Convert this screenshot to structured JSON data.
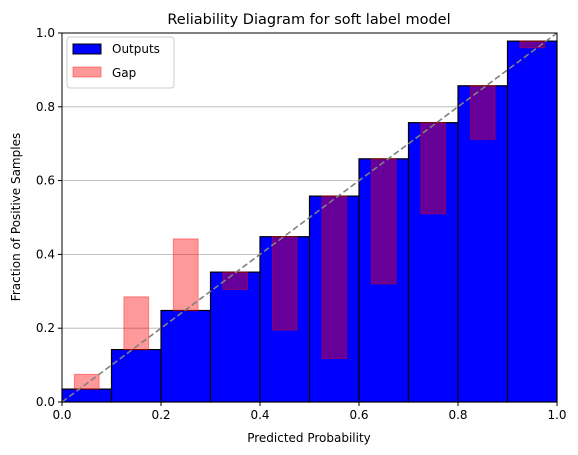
{
  "chart_data": {
    "type": "bar",
    "title": "Reliability Diagram for soft label model",
    "xlabel": "Predicted Probability",
    "ylabel": "Fraction of Positive Samples",
    "xlim": [
      0,
      1
    ],
    "ylim": [
      0,
      1
    ],
    "xticks": [
      "0.0",
      "0.2",
      "0.4",
      "0.6",
      "0.8",
      "1.0"
    ],
    "yticks": [
      "0.0",
      "0.2",
      "0.4",
      "0.6",
      "0.8",
      "1.0"
    ],
    "grid": "horizontal",
    "legend_position": "top-left",
    "bin_edges": [
      0.0,
      0.1,
      0.2,
      0.3,
      0.4,
      0.5,
      0.6,
      0.7,
      0.8,
      0.9,
      1.0
    ],
    "series": [
      {
        "name": "Outputs",
        "color": "#0000ff",
        "values": [
          0.035,
          0.142,
          0.248,
          0.352,
          0.448,
          0.558,
          0.659,
          0.757,
          0.857,
          0.978
        ]
      },
      {
        "name": "Gap",
        "color": "#ff0000",
        "opacity": 0.4,
        "bins": [
          {
            "x": 0.05,
            "low": 0.035,
            "high": 0.075
          },
          {
            "x": 0.15,
            "low": 0.142,
            "high": 0.285
          },
          {
            "x": 0.25,
            "low": 0.248,
            "high": 0.442
          },
          {
            "x": 0.35,
            "low": 0.305,
            "high": 0.352
          },
          {
            "x": 0.45,
            "low": 0.195,
            "high": 0.448
          },
          {
            "x": 0.55,
            "low": 0.118,
            "high": 0.558
          },
          {
            "x": 0.65,
            "low": 0.32,
            "high": 0.659
          },
          {
            "x": 0.75,
            "low": 0.51,
            "high": 0.757
          },
          {
            "x": 0.85,
            "low": 0.712,
            "high": 0.857
          },
          {
            "x": 0.95,
            "low": 0.96,
            "high": 0.978
          }
        ]
      }
    ],
    "reference_line": {
      "from": [
        0,
        0
      ],
      "to": [
        1,
        1
      ],
      "color": "#808080",
      "style": "dashed"
    }
  }
}
